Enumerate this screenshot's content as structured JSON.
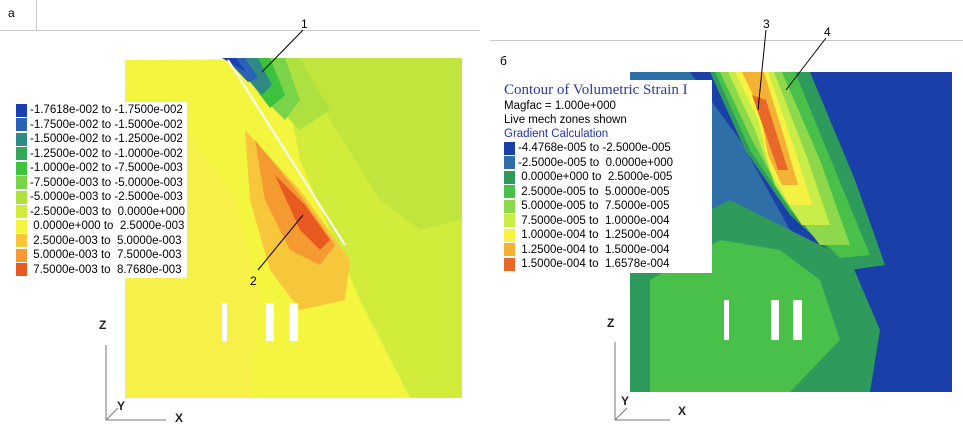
{
  "panels": {
    "left": {
      "label": "a",
      "legend": [
        {
          "range": "-1.7618e-002 to -1.7500e-002",
          "color": "#1840b0"
        },
        {
          "range": "-1.7500e-002 to -1.5000e-002",
          "color": "#2a62b8"
        },
        {
          "range": "-1.5000e-002 to -1.2500e-002",
          "color": "#2f8a86"
        },
        {
          "range": "-1.2500e-002 to -1.0000e-002",
          "color": "#32a85a"
        },
        {
          "range": "-1.0000e-002 to -7.5000e-003",
          "color": "#3cc23c"
        },
        {
          "range": "-7.5000e-003 to -5.0000e-003",
          "color": "#7ad44a"
        },
        {
          "range": "-5.0000e-003 to -2.5000e-003",
          "color": "#aee040"
        },
        {
          "range": "-2.5000e-003 to  0.0000e+000",
          "color": "#d2ec3c"
        },
        {
          "range": " 0.0000e+000 to  2.5000e-003",
          "color": "#f4f53e"
        },
        {
          "range": " 2.5000e-003 to  5.0000e-003",
          "color": "#f7c63a"
        },
        {
          "range": " 5.0000e-003 to  7.5000e-003",
          "color": "#f59a30"
        },
        {
          "range": " 7.5000e-003 to  8.7680e-003",
          "color": "#e85a20"
        }
      ],
      "callouts": [
        "1",
        "2"
      ],
      "axes": {
        "z": "Z",
        "y": "Y",
        "x": "X"
      }
    },
    "right": {
      "label": "б",
      "title": "Contour of Volumetric Strain I",
      "magfac": "Magfac =  1.000e+000",
      "zones": "Live mech zones shown",
      "gradient": "Gradient Calculation",
      "legend": [
        {
          "range": "-4.4768e-005 to -2.5000e-005",
          "color": "#1b3fa8"
        },
        {
          "range": "-2.5000e-005 to  0.0000e+000",
          "color": "#2d6fa6"
        },
        {
          "range": " 0.0000e+000 to  2.5000e-005",
          "color": "#2e9a5c"
        },
        {
          "range": " 2.5000e-005 to  5.0000e-005",
          "color": "#48c04a"
        },
        {
          "range": " 5.0000e-005 to  7.5000e-005",
          "color": "#8ed84c"
        },
        {
          "range": " 7.5000e-005 to  1.0000e-004",
          "color": "#c8ec48"
        },
        {
          "range": " 1.0000e-004 to  1.2500e-004",
          "color": "#f6f244"
        },
        {
          "range": " 1.2500e-004 to  1.5000e-004",
          "color": "#f4b234"
        },
        {
          "range": " 1.5000e-004 to  1.6578e-004",
          "color": "#e8682a"
        }
      ],
      "callouts": [
        "3",
        "4"
      ],
      "axes": {
        "z": "Z",
        "y": "Y",
        "x": "X"
      }
    }
  }
}
